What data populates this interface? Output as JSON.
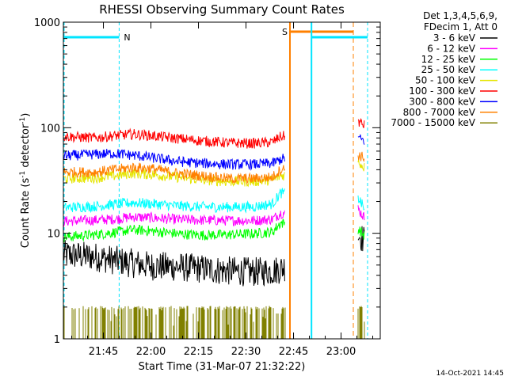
{
  "chart_data": {
    "type": "line",
    "title": "RHESSI Observing Summary Count Rates",
    "xlabel": "Start Time (31-Mar-07 21:32:22)",
    "ylabel_main": "Count Rate (s",
    "ylabel_sup1": "-1",
    "ylabel_mid": " detector",
    "ylabel_sup2": "-1",
    "ylabel_end": ")",
    "y_scale": "log",
    "ylim": [
      1,
      1000
    ],
    "xlim_minutes": [
      0,
      100
    ],
    "x_ticks": [
      {
        "label": "21:45",
        "minutes": 12.63
      },
      {
        "label": "22:00",
        "minutes": 27.63
      },
      {
        "label": "22:15",
        "minutes": 42.63
      },
      {
        "label": "22:30",
        "minutes": 57.63
      },
      {
        "label": "22:45",
        "minutes": 72.63
      },
      {
        "label": "23:00",
        "minutes": 87.63
      }
    ],
    "y_ticks": [
      {
        "label": "1",
        "value": 1
      },
      {
        "label": "10",
        "value": 10
      },
      {
        "label": "100",
        "value": 100
      },
      {
        "label": "1000",
        "value": 1000
      }
    ],
    "legend_header": [
      "Det 1,3,4,5,6,9,",
      "FDecim 1, Att 0"
    ],
    "legend_position": "right",
    "series": [
      {
        "name": "3 - 6 keV",
        "color": "#000000",
        "x": [
          0,
          10,
          20,
          28,
          36,
          44,
          52,
          60,
          66,
          68.5,
          93,
          95
        ],
        "y": [
          6.3,
          6.0,
          5.3,
          4.9,
          4.8,
          4.6,
          4.4,
          4.3,
          4.4,
          4.6,
          10,
          8.5
        ]
      },
      {
        "name": "6 - 12 keV",
        "color": "#ff00ff",
        "x": [
          0,
          10,
          16,
          22,
          28,
          36,
          44,
          52,
          60,
          66,
          68.5,
          93,
          95
        ],
        "y": [
          13,
          13.3,
          13.6,
          14.3,
          14.0,
          13.5,
          13.3,
          13.2,
          13.2,
          13.6,
          15.5,
          17,
          14
        ]
      },
      {
        "name": "12 - 25 keV",
        "color": "#00ff00",
        "x": [
          0,
          10,
          16,
          22,
          28,
          36,
          44,
          52,
          60,
          66,
          68.5,
          93,
          95
        ],
        "y": [
          9.2,
          9.7,
          10.2,
          10.8,
          10.5,
          9.9,
          9.6,
          9.7,
          9.9,
          10.3,
          12.5,
          11,
          9.5
        ]
      },
      {
        "name": "25 - 50 keV",
        "color": "#00ffff",
        "x": [
          0,
          10,
          16,
          22,
          28,
          36,
          44,
          52,
          60,
          66,
          68.5,
          93,
          95
        ],
        "y": [
          17.5,
          18.0,
          18.8,
          19.5,
          19.0,
          18.2,
          17.8,
          17.7,
          17.8,
          19.0,
          24,
          22,
          17
        ]
      },
      {
        "name": "50 - 100 keV",
        "color": "#e5e500",
        "x": [
          0,
          10,
          16,
          22,
          28,
          36,
          44,
          52,
          60,
          66,
          68.5,
          93,
          95
        ],
        "y": [
          33,
          33.5,
          35,
          37,
          36,
          34,
          32,
          31,
          31,
          32,
          35,
          48,
          42
        ]
      },
      {
        "name": "100 - 300 keV",
        "color": "#ff0000",
        "x": [
          0,
          10,
          16,
          22,
          28,
          36,
          44,
          52,
          60,
          66,
          68.5,
          93,
          95
        ],
        "y": [
          83,
          80,
          84,
          87,
          84,
          79,
          75,
          72,
          71,
          73,
          82,
          115,
          105
        ]
      },
      {
        "name": "300 - 800 keV",
        "color": "#0000ff",
        "x": [
          0,
          10,
          16,
          22,
          28,
          36,
          44,
          52,
          60,
          66,
          68.5,
          93,
          95
        ],
        "y": [
          54,
          56,
          57,
          55,
          52,
          48,
          46,
          45,
          45,
          46,
          50,
          80,
          75
        ]
      },
      {
        "name": "800 - 7000 keV",
        "color": "#ff8000",
        "x": [
          0,
          10,
          16,
          22,
          28,
          36,
          44,
          52,
          60,
          66,
          68.5,
          93,
          95
        ],
        "y": [
          38,
          38,
          40,
          42,
          41,
          37,
          35,
          33,
          33,
          34,
          40,
          55,
          52
        ]
      },
      {
        "name": "7000 - 15000 keV",
        "color": "#808000",
        "x": [
          0,
          68.5,
          93,
          95
        ],
        "y": [
          1,
          1,
          1.2,
          1
        ]
      }
    ],
    "annotations": [
      {
        "text": "N",
        "color": "#00e5ff"
      },
      {
        "text": "S",
        "color": "#ff8000"
      }
    ],
    "timestamp": "14-Oct-2021 14:45"
  }
}
